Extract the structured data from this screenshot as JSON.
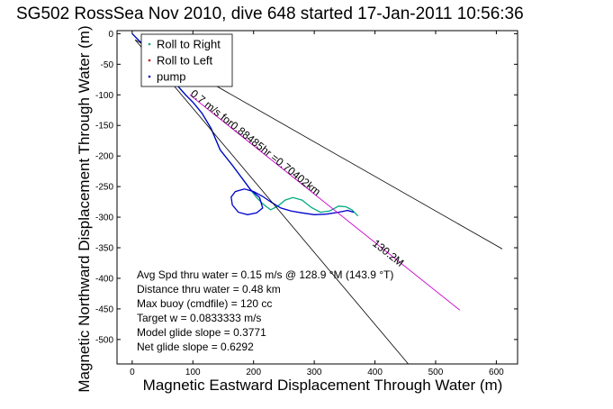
{
  "chart_data": {
    "type": "line",
    "title": "SG502 RossSea Nov 2010, dive 648 started 17-Jan-2011 10:56:36",
    "xlabel": "Magnetic Eastward Displacement Through Water (m)",
    "ylabel": "Magnetic Northward Displacement Through Water (m)",
    "xlim": [
      -25,
      635
    ],
    "ylim": [
      -540,
      5
    ],
    "xticks": [
      0,
      100,
      200,
      300,
      400,
      500,
      600
    ],
    "yticks": [
      0,
      -50,
      -100,
      -150,
      -200,
      -250,
      -300,
      -350,
      -400,
      -450,
      -500
    ],
    "grid": false,
    "legend_position": "top-left",
    "legend": [
      {
        "label": "Roll to Right",
        "color": "#00aa80",
        "marker": "dot"
      },
      {
        "label": "Roll to Left",
        "color": "#cc0000",
        "marker": "dot"
      },
      {
        "label": "pump",
        "color": "#0000cc",
        "marker": "dot"
      }
    ],
    "series": [
      {
        "color": "#00aa80",
        "x": [
          0,
          20,
          45,
          70,
          88,
          100,
          115,
          130,
          145,
          165,
          180,
          195,
          205,
          212,
          215,
          220,
          228,
          240,
          252,
          265,
          280,
          295,
          310,
          325,
          340,
          352,
          362,
          372
        ],
        "y": [
          0,
          -20,
          -50,
          -80,
          -100,
          -112,
          -130,
          -155,
          -190,
          -215,
          -235,
          -255,
          -268,
          -275,
          -278,
          -282,
          -288,
          -282,
          -272,
          -268,
          -272,
          -284,
          -292,
          -290,
          -282,
          -283,
          -288,
          -298
        ]
      },
      {
        "color": "#0000cc",
        "x": [
          0,
          20,
          45,
          70,
          88,
          100,
          115,
          130,
          145,
          165,
          180,
          195,
          210,
          215,
          205,
          190,
          175,
          165,
          163,
          170,
          185,
          200,
          215,
          230,
          245,
          262,
          280,
          300,
          320,
          340,
          355,
          365
        ],
        "y": [
          0,
          -20,
          -50,
          -80,
          -100,
          -112,
          -130,
          -155,
          -190,
          -215,
          -235,
          -255,
          -268,
          -285,
          -293,
          -296,
          -292,
          -280,
          -267,
          -258,
          -254,
          -258,
          -266,
          -276,
          -285,
          -290,
          -293,
          -296,
          -295,
          -292,
          -289,
          -292
        ]
      },
      {
        "color": "#cc00cc",
        "x": [
          95,
          540
        ],
        "y": [
          -100,
          -452
        ]
      },
      {
        "color": "#000000",
        "x": [
          5,
          610
        ],
        "y": [
          -10,
          -352
        ]
      },
      {
        "color": "#000000",
        "x": [
          5,
          455
        ],
        "y": [
          -10,
          -540
        ]
      }
    ],
    "annotations": [
      {
        "text": "0.7 m/s for0.88485hr =0.70402km",
        "x": 95,
        "y": -100
      },
      {
        "text": "130.2M",
        "x": 395,
        "y": -345
      }
    ],
    "stats": [
      "Avg Spd thru water = 0.15 m/s @ 128.9 °M (143.9 °T)",
      "Distance thru water = 0.48 km",
      "Max buoy (cmdfile) = 120 cc",
      "Target w = 0.0833333 m/s",
      "Model glide slope = 0.3771",
      "Net glide slope = 0.6292"
    ]
  }
}
